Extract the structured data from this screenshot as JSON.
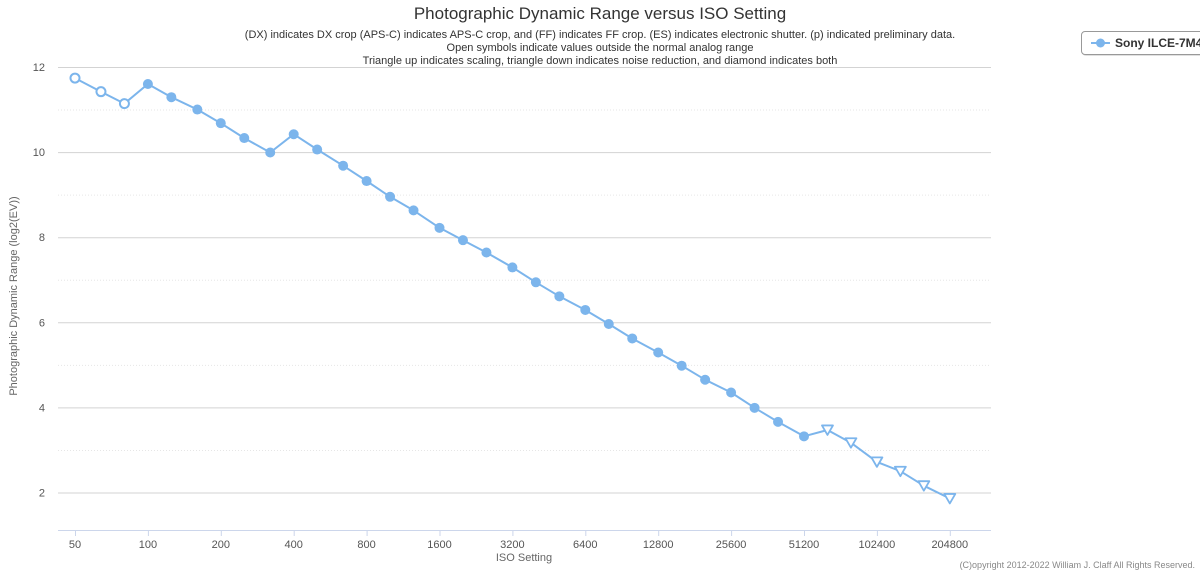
{
  "title": "Photographic Dynamic Range versus ISO Setting",
  "subtitle_lines": [
    "(DX) indicates DX crop (APS-C) indicates APS-C crop, and (FF) indicates FF crop. (ES) indicates electronic shutter. (p) indicated preliminary data.",
    "Open symbols indicate values outside the normal analog range",
    "Triangle up indicates scaling, triangle down indicates noise reduction, and diamond indicates both"
  ],
  "legend": {
    "label": "Sony ILCE-7M4",
    "marker_color": "#7cb5ec",
    "position": "top-right"
  },
  "footer": "(C)opyright 2012-2022 William J. Claff All Rights Reserved.",
  "chart_data": {
    "type": "line",
    "title": "Photographic Dynamic Range versus ISO Setting",
    "xlabel": "ISO Setting",
    "ylabel": "Photographic Dynamic Range (log2(EV))",
    "x_scale": "log2",
    "x_tick_labels": [
      "50",
      "100",
      "200",
      "400",
      "800",
      "1600",
      "3200",
      "6400",
      "12800",
      "25600",
      "51200",
      "102400",
      "204800"
    ],
    "y_major_ticks": [
      2,
      4,
      6,
      8,
      10,
      12
    ],
    "y_minor_ticks": [
      3,
      5,
      7,
      9,
      11
    ],
    "ylim": [
      1.05,
      12
    ],
    "xlim": [
      42,
      300000
    ],
    "grid": true,
    "legend_position": "top-right",
    "marker_legend": {
      "circle-open": "value outside normal analog range",
      "triangle-down-open": "noise reduction, outside normal analog range",
      "circle": "normal analog value"
    },
    "colors": {
      "series": "#7cb5ec",
      "grid_major": "#d3d3d3",
      "grid_minor": "#e6e6e6",
      "axis_line": "#ccd6eb"
    },
    "series": [
      {
        "name": "Sony ILCE-7M4",
        "color": "#7cb5ec",
        "points": [
          {
            "iso": 50,
            "pdr": 11.74,
            "marker": "circle-open"
          },
          {
            "iso": 64,
            "pdr": 11.42,
            "marker": "circle-open"
          },
          {
            "iso": 80,
            "pdr": 11.14,
            "marker": "circle-open"
          },
          {
            "iso": 100,
            "pdr": 11.6,
            "marker": "circle"
          },
          {
            "iso": 125,
            "pdr": 11.29,
            "marker": "circle"
          },
          {
            "iso": 160,
            "pdr": 11.0,
            "marker": "circle"
          },
          {
            "iso": 200,
            "pdr": 10.68,
            "marker": "circle"
          },
          {
            "iso": 250,
            "pdr": 10.33,
            "marker": "circle"
          },
          {
            "iso": 320,
            "pdr": 9.99,
            "marker": "circle"
          },
          {
            "iso": 400,
            "pdr": 10.42,
            "marker": "circle"
          },
          {
            "iso": 500,
            "pdr": 10.06,
            "marker": "circle"
          },
          {
            "iso": 640,
            "pdr": 9.68,
            "marker": "circle"
          },
          {
            "iso": 800,
            "pdr": 9.32,
            "marker": "circle"
          },
          {
            "iso": 1000,
            "pdr": 8.95,
            "marker": "circle"
          },
          {
            "iso": 1250,
            "pdr": 8.63,
            "marker": "circle"
          },
          {
            "iso": 1600,
            "pdr": 8.22,
            "marker": "circle"
          },
          {
            "iso": 2000,
            "pdr": 7.93,
            "marker": "circle"
          },
          {
            "iso": 2500,
            "pdr": 7.64,
            "marker": "circle"
          },
          {
            "iso": 3200,
            "pdr": 7.29,
            "marker": "circle"
          },
          {
            "iso": 4000,
            "pdr": 6.94,
            "marker": "circle"
          },
          {
            "iso": 5000,
            "pdr": 6.61,
            "marker": "circle"
          },
          {
            "iso": 6400,
            "pdr": 6.29,
            "marker": "circle"
          },
          {
            "iso": 8000,
            "pdr": 5.96,
            "marker": "circle"
          },
          {
            "iso": 10000,
            "pdr": 5.62,
            "marker": "circle"
          },
          {
            "iso": 12800,
            "pdr": 5.29,
            "marker": "circle"
          },
          {
            "iso": 16000,
            "pdr": 4.98,
            "marker": "circle"
          },
          {
            "iso": 20000,
            "pdr": 4.65,
            "marker": "circle"
          },
          {
            "iso": 25600,
            "pdr": 4.35,
            "marker": "circle"
          },
          {
            "iso": 32000,
            "pdr": 3.99,
            "marker": "circle"
          },
          {
            "iso": 40000,
            "pdr": 3.66,
            "marker": "circle"
          },
          {
            "iso": 51200,
            "pdr": 3.32,
            "marker": "circle"
          },
          {
            "iso": 64000,
            "pdr": 3.47,
            "marker": "triangle-down-open"
          },
          {
            "iso": 80000,
            "pdr": 3.17,
            "marker": "triangle-down-open"
          },
          {
            "iso": 102400,
            "pdr": 2.72,
            "marker": "triangle-down-open"
          },
          {
            "iso": 128000,
            "pdr": 2.5,
            "marker": "triangle-down-open"
          },
          {
            "iso": 160000,
            "pdr": 2.16,
            "marker": "triangle-down-open"
          },
          {
            "iso": 204800,
            "pdr": 1.86,
            "marker": "triangle-down-open"
          }
        ]
      }
    ]
  }
}
